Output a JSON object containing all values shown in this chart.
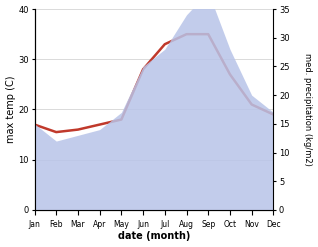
{
  "months": [
    "Jan",
    "Feb",
    "Mar",
    "Apr",
    "May",
    "Jun",
    "Jul",
    "Aug",
    "Sep",
    "Oct",
    "Nov",
    "Dec"
  ],
  "max_temp": [
    17,
    15.5,
    16,
    17,
    18,
    28,
    33,
    35,
    35,
    27,
    21,
    19
  ],
  "precipitation": [
    15,
    12,
    13,
    14,
    17,
    25,
    28,
    34,
    38,
    28,
    20,
    17
  ],
  "temp_color": "#c0392b",
  "precip_fill_color": "#b8c4e8",
  "temp_lw": 1.8,
  "left_ylim": [
    0,
    40
  ],
  "right_ylim": [
    0,
    35
  ],
  "left_yticks": [
    0,
    10,
    20,
    30,
    40
  ],
  "right_yticks": [
    0,
    5,
    10,
    15,
    20,
    25,
    30,
    35
  ],
  "xlabel": "date (month)",
  "ylabel_left": "max temp (C)",
  "ylabel_right": "med. precipitation (kg/m2)"
}
